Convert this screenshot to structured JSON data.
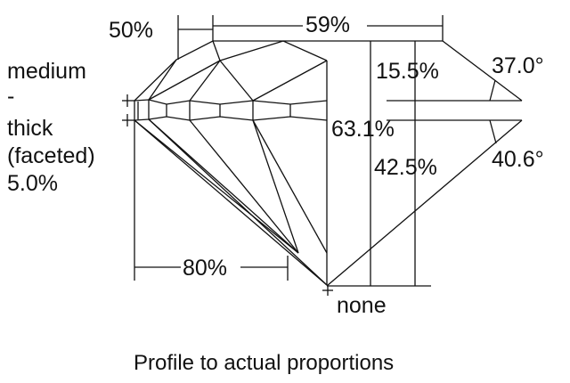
{
  "labels": {
    "crown_height_pct": "50%",
    "table_pct": "59%",
    "girdle_line1": "medium",
    "girdle_line2": "-",
    "girdle_line3": "thick",
    "girdle_line4": "(faceted)",
    "girdle_pct": "5.0%",
    "crown_depth_pct": "15.5%",
    "crown_angle": "37.0°",
    "total_depth_pct": "63.1%",
    "pavilion_depth_pct": "42.5%",
    "pavilion_angle": "40.6°",
    "lower_half_pct": "80%",
    "culet": "none"
  },
  "caption": "Profile to actual proportions",
  "colors": {
    "line": "#111111",
    "background": "#ffffff"
  }
}
